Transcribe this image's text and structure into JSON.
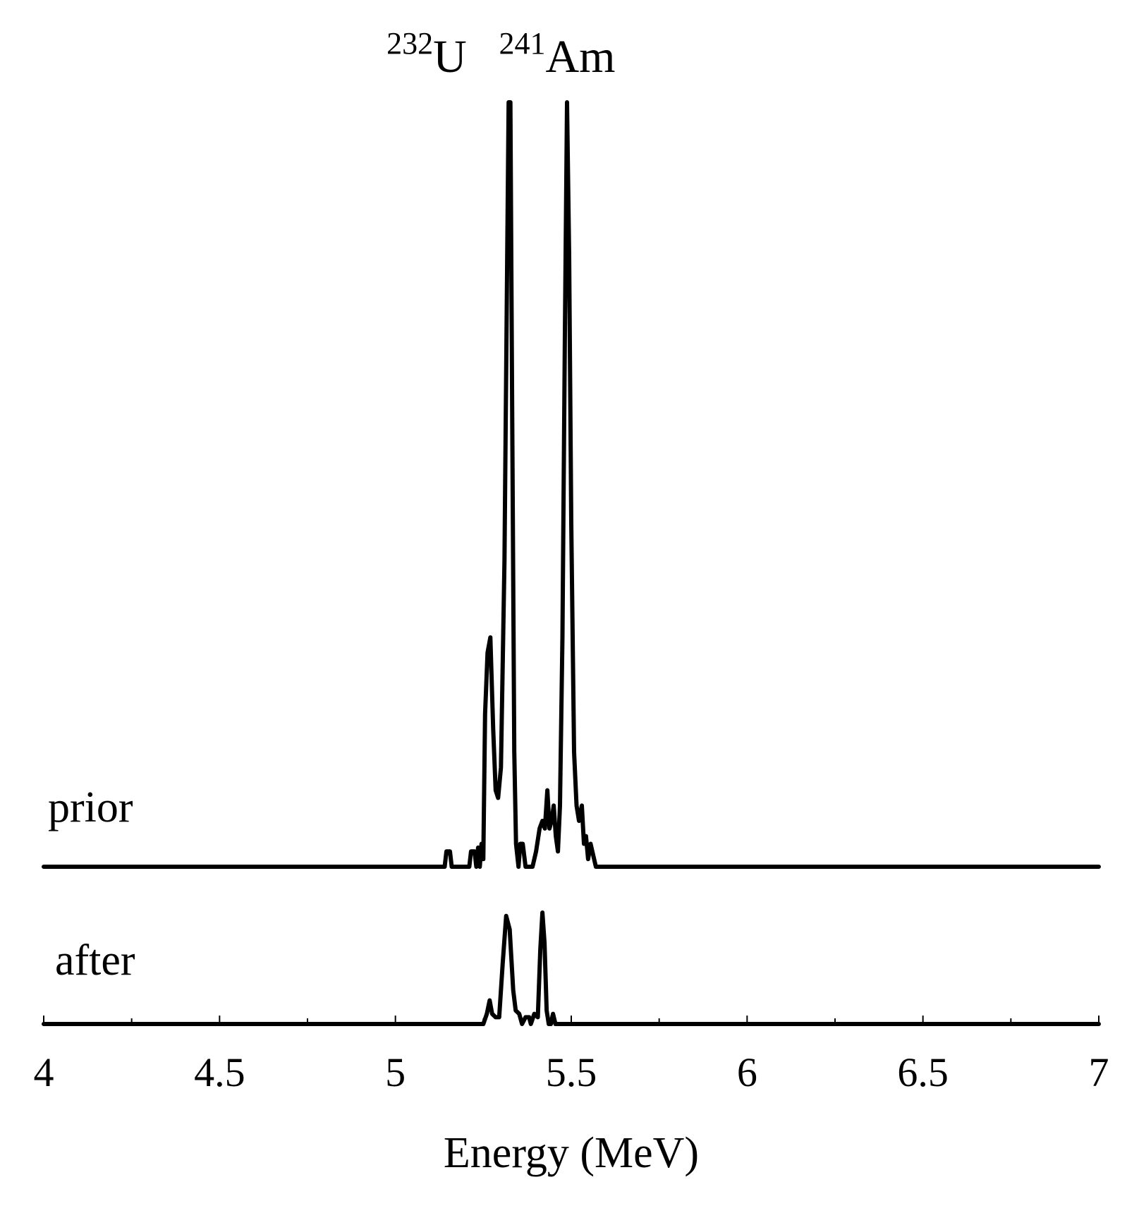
{
  "chart_data": {
    "type": "line",
    "title": "",
    "xlabel": "Energy (MeV)",
    "ylabel": "",
    "xlim": [
      4,
      7
    ],
    "x_ticks": [
      "4",
      "4.5",
      "5",
      "5.5",
      "6",
      "6.5",
      "7"
    ],
    "x_tick_values": [
      4,
      4.5,
      5,
      5.5,
      6,
      6.5,
      7
    ],
    "grid": false,
    "legend": "none",
    "line_color": "#000000",
    "peak_labels": [
      {
        "mass": "232",
        "element": "U",
        "x": 5.31
      },
      {
        "mass": "241",
        "element": "Am",
        "x": 5.49
      }
    ],
    "series": [
      {
        "name": "prior",
        "points": [
          [
            4.0,
            0
          ],
          [
            5.14,
            0
          ],
          [
            5.145,
            2
          ],
          [
            5.155,
            2
          ],
          [
            5.16,
            0
          ],
          [
            5.21,
            0
          ],
          [
            5.215,
            2
          ],
          [
            5.225,
            2
          ],
          [
            5.23,
            0
          ],
          [
            5.235,
            2.5
          ],
          [
            5.24,
            0
          ],
          [
            5.245,
            3
          ],
          [
            5.25,
            1
          ],
          [
            5.255,
            20
          ],
          [
            5.262,
            28
          ],
          [
            5.27,
            30
          ],
          [
            5.278,
            18
          ],
          [
            5.285,
            10
          ],
          [
            5.292,
            9
          ],
          [
            5.3,
            13
          ],
          [
            5.31,
            40
          ],
          [
            5.318,
            80
          ],
          [
            5.322,
            100
          ],
          [
            5.327,
            100
          ],
          [
            5.332,
            60
          ],
          [
            5.338,
            15
          ],
          [
            5.343,
            3
          ],
          [
            5.35,
            0
          ],
          [
            5.355,
            3
          ],
          [
            5.362,
            3
          ],
          [
            5.37,
            0
          ],
          [
            5.38,
            0
          ],
          [
            5.39,
            0
          ],
          [
            5.4,
            2
          ],
          [
            5.41,
            5
          ],
          [
            5.418,
            6
          ],
          [
            5.425,
            5
          ],
          [
            5.432,
            10
          ],
          [
            5.438,
            5
          ],
          [
            5.444,
            6
          ],
          [
            5.45,
            8
          ],
          [
            5.456,
            4
          ],
          [
            5.462,
            2
          ],
          [
            5.468,
            8
          ],
          [
            5.475,
            30
          ],
          [
            5.482,
            70
          ],
          [
            5.488,
            100
          ],
          [
            5.494,
            80
          ],
          [
            5.5,
            45
          ],
          [
            5.508,
            15
          ],
          [
            5.515,
            8
          ],
          [
            5.522,
            6
          ],
          [
            5.53,
            8
          ],
          [
            5.536,
            3
          ],
          [
            5.542,
            4
          ],
          [
            5.548,
            1
          ],
          [
            5.555,
            3
          ],
          [
            5.565,
            1
          ],
          [
            5.57,
            0
          ],
          [
            7.0,
            0
          ]
        ]
      },
      {
        "name": "after",
        "points": [
          [
            4.0,
            0
          ],
          [
            5.25,
            0
          ],
          [
            5.26,
            3
          ],
          [
            5.268,
            7
          ],
          [
            5.275,
            3
          ],
          [
            5.285,
            2
          ],
          [
            5.295,
            2
          ],
          [
            5.305,
            18
          ],
          [
            5.315,
            32
          ],
          [
            5.325,
            28
          ],
          [
            5.335,
            10
          ],
          [
            5.342,
            4
          ],
          [
            5.352,
            3
          ],
          [
            5.36,
            0
          ],
          [
            5.37,
            2
          ],
          [
            5.38,
            2
          ],
          [
            5.385,
            0
          ],
          [
            5.395,
            3
          ],
          [
            5.405,
            2
          ],
          [
            5.412,
            22
          ],
          [
            5.418,
            33
          ],
          [
            5.424,
            24
          ],
          [
            5.43,
            4
          ],
          [
            5.436,
            0
          ],
          [
            5.442,
            0
          ],
          [
            5.448,
            3
          ],
          [
            5.455,
            0
          ],
          [
            7.0,
            0
          ]
        ]
      }
    ]
  }
}
